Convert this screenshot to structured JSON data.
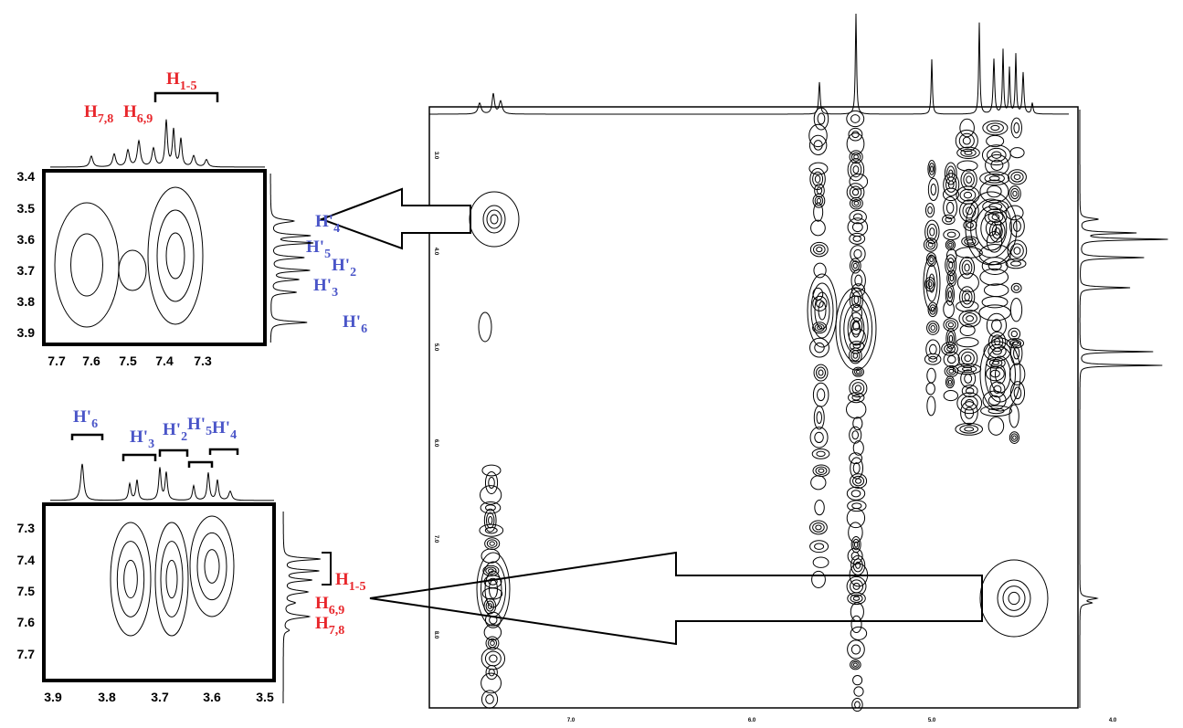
{
  "top_inset": {
    "x_ticks": [
      "7.7",
      "7.6",
      "7.5",
      "7.4",
      "7.3"
    ],
    "y_ticks": [
      "3.4",
      "3.5",
      "3.6",
      "3.7",
      "3.8",
      "3.9"
    ],
    "top_labels": [
      {
        "h": "H",
        "sub": "7,8"
      },
      {
        "h": "H",
        "sub": "6,9"
      },
      {
        "h": "H",
        "sub": "1-5"
      }
    ],
    "side_labels": [
      {
        "h": "H'",
        "sub": "4"
      },
      {
        "h": "H'",
        "sub": "5"
      },
      {
        "h": "H'",
        "sub": "2"
      },
      {
        "h": "H'",
        "sub": "3"
      },
      {
        "h": "H'",
        "sub": "6"
      }
    ]
  },
  "bottom_inset": {
    "x_ticks": [
      "3.9",
      "3.8",
      "3.7",
      "3.6",
      "3.5"
    ],
    "y_ticks": [
      "7.3",
      "7.4",
      "7.5",
      "7.6",
      "7.7"
    ],
    "top_labels": [
      {
        "h": "H'",
        "sub": "6"
      },
      {
        "h": "H'",
        "sub": "3"
      },
      {
        "h": "H'",
        "sub": "2"
      },
      {
        "h": "H'",
        "sub": "5"
      },
      {
        "h": "H'",
        "sub": "4"
      }
    ],
    "side_labels": [
      {
        "h": "H",
        "sub": "1-5"
      },
      {
        "h": "H",
        "sub": "6,9"
      },
      {
        "h": "H",
        "sub": "7,8"
      }
    ]
  },
  "main_spectrum": {
    "x_ticks": [
      "7.0",
      "6.0",
      "5.0",
      "4.0"
    ],
    "y_ticks": [
      "3.0",
      "4.0",
      "5.0",
      "6.0",
      "7.0",
      "8.0"
    ]
  }
}
